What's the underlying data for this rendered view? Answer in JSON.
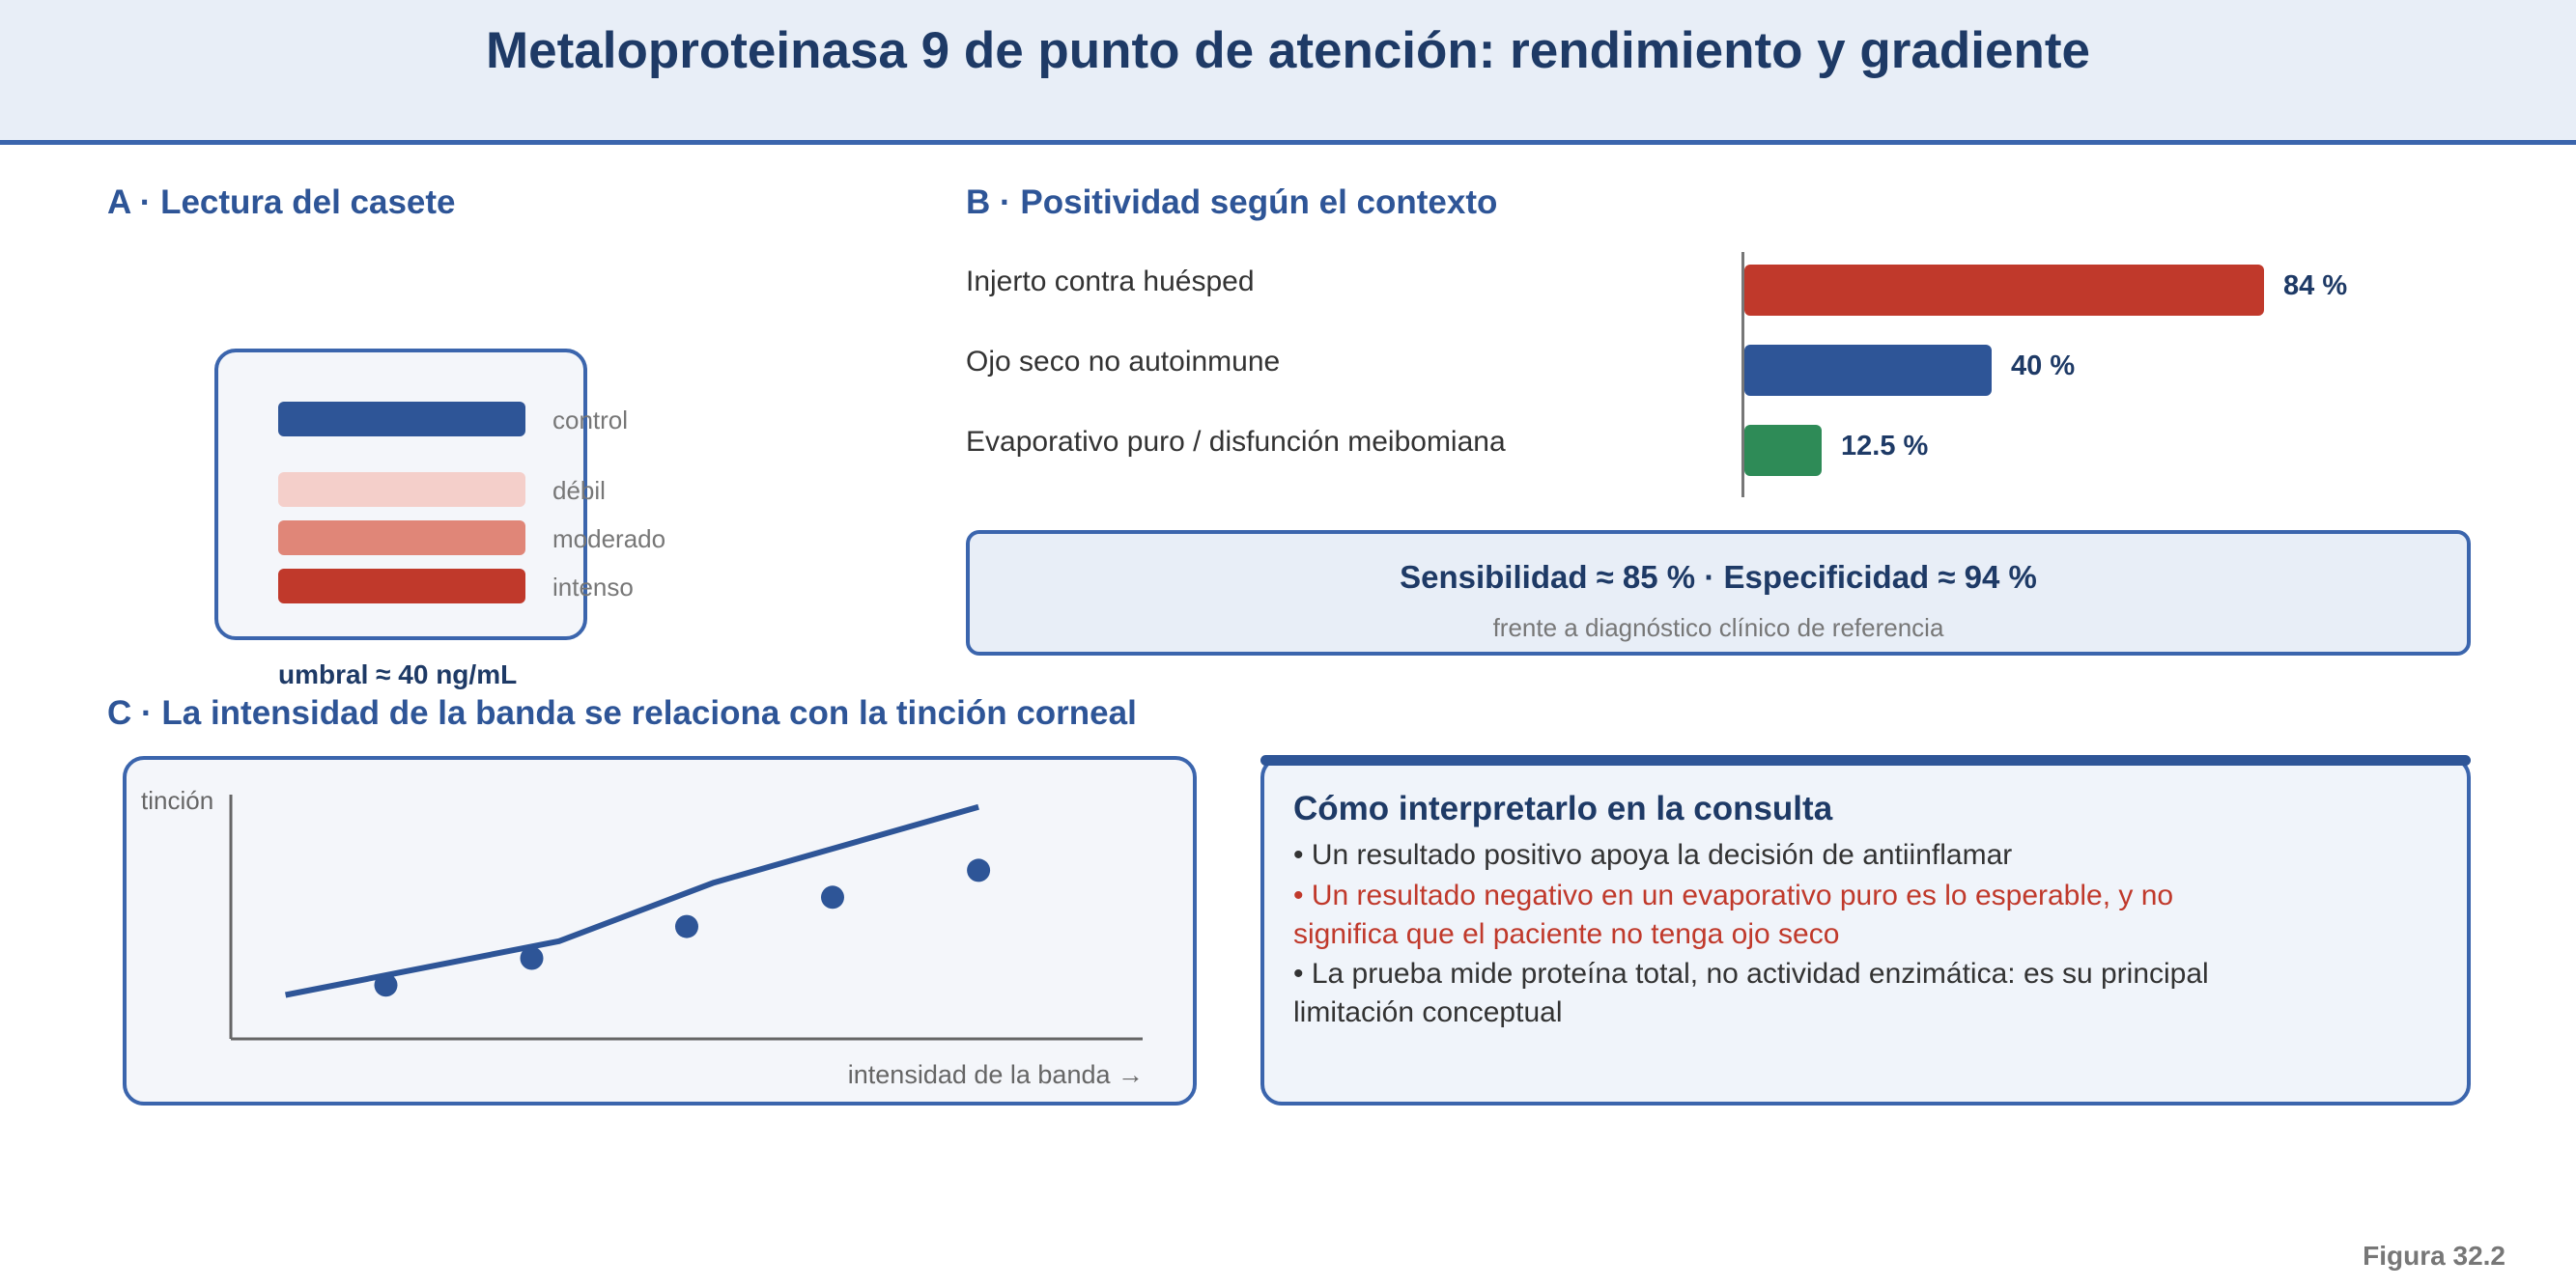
{
  "title": "Metaloproteinasa 9 de punto de atención: rendimiento y gradiente",
  "colors": {
    "accent": "#3b65ad",
    "red": "#c0392b",
    "green": "#2e8b57",
    "navy": "#1e3a66"
  },
  "panel_a": {
    "title": "A · Lectura del casete",
    "bands": [
      {
        "label": "control",
        "color": "#2e5597"
      },
      {
        "label": "débil",
        "color": "#f4cfca"
      },
      {
        "label": "moderado",
        "color": "#e08678"
      },
      {
        "label": "intenso",
        "color": "#c0392b"
      }
    ],
    "threshold": "umbral ≈ 40 ng/mL"
  },
  "panel_b": {
    "title": "B · Positividad según el contexto",
    "chart_data": {
      "type": "bar",
      "orientation": "horizontal",
      "categories": [
        "Injerto contra huésped",
        "Ojo seco no autoinmune",
        "Evaporativo puro / disfunción meibomiana"
      ],
      "values": [
        84,
        40,
        12.5
      ],
      "value_labels": [
        "84 %",
        "40 %",
        "12.5 %"
      ],
      "colors": [
        "#c0392b",
        "#2e5597",
        "#2e8b57"
      ],
      "xlim": [
        0,
        100
      ]
    },
    "performance": "Sensibilidad ≈ 85 % · Especificidad ≈ 94 %",
    "reference": "frente a diagnóstico clínico de referencia"
  },
  "panel_c": {
    "title": "C · La intensidad de la banda se relaciona con la tinción corneal",
    "chart_data": {
      "type": "scatter",
      "ylabel": "tinción",
      "xlabel": "intensidad de la banda →",
      "xlim": [
        0,
        10
      ],
      "ylim": [
        0,
        10
      ],
      "points": [
        {
          "x": 1.7,
          "y": 2.2
        },
        {
          "x": 3.3,
          "y": 3.3
        },
        {
          "x": 5.0,
          "y": 4.6
        },
        {
          "x": 6.6,
          "y": 5.8
        },
        {
          "x": 8.2,
          "y": 6.9
        }
      ],
      "trend_line": [
        {
          "x": 0.6,
          "y": 1.8
        },
        {
          "x": 3.6,
          "y": 4.0
        },
        {
          "x": 5.3,
          "y": 6.4
        },
        {
          "x": 8.2,
          "y": 9.5
        }
      ],
      "grid": false
    }
  },
  "interpretation": {
    "title": "Cómo interpretarlo en la consulta",
    "bullets": [
      {
        "text": "• Un resultado positivo apoya la decisión de antiinflamar",
        "warning": false
      },
      {
        "text": "• Un resultado negativo en un evaporativo puro es lo esperable, y no significa que el paciente no tenga ojo seco",
        "warning": true
      },
      {
        "text": "• La prueba mide proteína total, no actividad enzimática: es su principal limitación conceptual",
        "warning": false
      }
    ]
  },
  "figure_label": "Figura 32.2"
}
